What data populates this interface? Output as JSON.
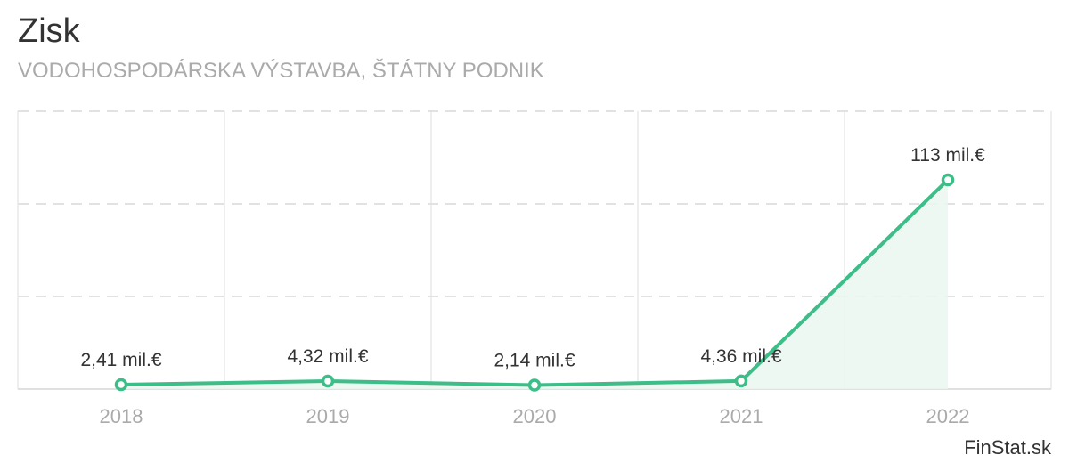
{
  "title": "Zisk",
  "subtitle": "VODOHOSPODÁRSKA VÝSTAVBA, ŠTÁTNY PODNIK",
  "brand": "FinStat.sk",
  "chart_data": {
    "type": "area",
    "categories": [
      "2018",
      "2019",
      "2020",
      "2021",
      "2022"
    ],
    "values": [
      2.41,
      4.32,
      2.14,
      4.36,
      113
    ],
    "data_labels": [
      "2,41 mil.€",
      "4,32 mil.€",
      "2,14 mil.€",
      "4,36 mil.€",
      "113 mil.€"
    ],
    "ylim": [
      0,
      150
    ],
    "grid": true,
    "legend": "none",
    "line_color": "#3dbd87",
    "fill_color": "#eaf7f1"
  }
}
